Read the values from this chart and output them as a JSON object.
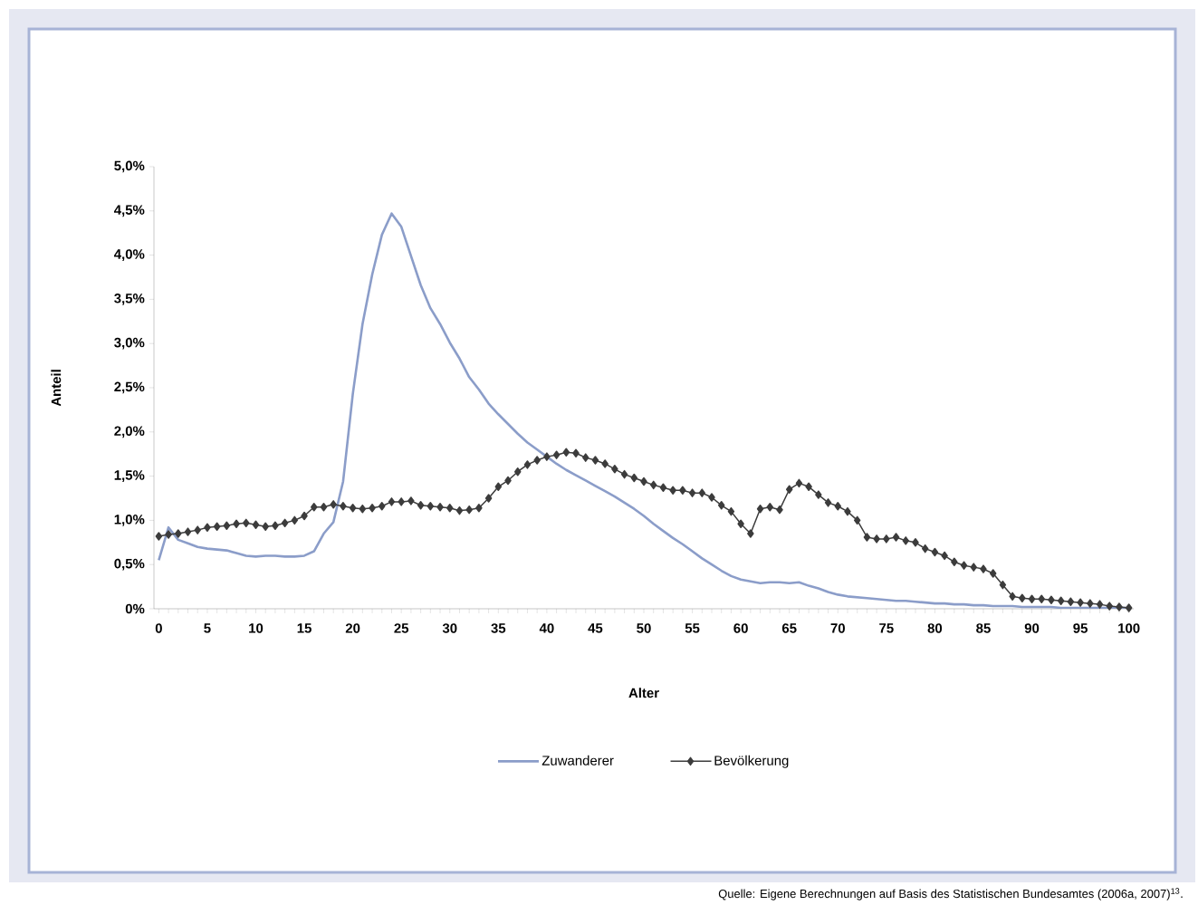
{
  "chart_data": {
    "type": "line",
    "xlabel": "Alter",
    "ylabel": "Anteil",
    "annotations": [
      "Quelle: Eigene Berechnungen auf Basis des Statistischen Bundesamtes (2006a, 2007)$^{13}$."
    ],
    "x": [
      0,
      1,
      2,
      3,
      4,
      5,
      6,
      7,
      8,
      9,
      10,
      11,
      12,
      13,
      14,
      15,
      16,
      17,
      18,
      19,
      20,
      21,
      22,
      23,
      24,
      25,
      26,
      27,
      28,
      29,
      30,
      31,
      32,
      33,
      34,
      35,
      36,
      37,
      38,
      39,
      40,
      41,
      42,
      43,
      44,
      45,
      46,
      47,
      48,
      49,
      50,
      51,
      52,
      53,
      54,
      55,
      56,
      57,
      58,
      59,
      60,
      61,
      62,
      63,
      64,
      65,
      66,
      67,
      68,
      69,
      70,
      71,
      72,
      73,
      74,
      75,
      76,
      77,
      78,
      79,
      80,
      81,
      82,
      83,
      84,
      85,
      86,
      87,
      88,
      89,
      90,
      91,
      92,
      93,
      94,
      95,
      96,
      97,
      98,
      99,
      100
    ],
    "series": [
      {
        "name": "Zuwanderer",
        "color": "#8b9dc9",
        "marker": "none",
        "values": [
          0.55,
          0.92,
          0.78,
          0.74,
          0.7,
          0.68,
          0.67,
          0.66,
          0.63,
          0.6,
          0.59,
          0.6,
          0.6,
          0.59,
          0.59,
          0.6,
          0.65,
          0.85,
          0.98,
          1.44,
          2.43,
          3.22,
          3.78,
          4.23,
          4.47,
          4.32,
          3.99,
          3.66,
          3.4,
          3.22,
          3.01,
          2.83,
          2.62,
          2.48,
          2.32,
          2.2,
          2.09,
          1.98,
          1.88,
          1.8,
          1.72,
          1.64,
          1.57,
          1.51,
          1.45,
          1.39,
          1.33,
          1.27,
          1.2,
          1.13,
          1.05,
          0.96,
          0.88,
          0.8,
          0.73,
          0.65,
          0.57,
          0.5,
          0.43,
          0.37,
          0.33,
          0.31,
          0.29,
          0.3,
          0.3,
          0.29,
          0.3,
          0.26,
          0.23,
          0.19,
          0.16,
          0.14,
          0.13,
          0.12,
          0.11,
          0.1,
          0.09,
          0.09,
          0.08,
          0.07,
          0.06,
          0.06,
          0.05,
          0.05,
          0.04,
          0.04,
          0.03,
          0.03,
          0.03,
          0.02,
          0.02,
          0.02,
          0.02,
          0.01,
          0.01,
          0.01,
          0.01,
          0.01,
          0.01,
          0.01,
          0.01
        ]
      },
      {
        "name": "Bevölkerung",
        "color": "#3c3c3c",
        "marker": "diamond",
        "values": [
          0.82,
          0.84,
          0.85,
          0.87,
          0.89,
          0.92,
          0.93,
          0.94,
          0.96,
          0.97,
          0.95,
          0.93,
          0.94,
          0.97,
          1.0,
          1.05,
          1.15,
          1.15,
          1.18,
          1.16,
          1.14,
          1.13,
          1.14,
          1.16,
          1.21,
          1.21,
          1.22,
          1.17,
          1.16,
          1.15,
          1.14,
          1.11,
          1.12,
          1.14,
          1.25,
          1.38,
          1.45,
          1.55,
          1.63,
          1.68,
          1.72,
          1.74,
          1.77,
          1.76,
          1.71,
          1.68,
          1.64,
          1.58,
          1.52,
          1.48,
          1.44,
          1.4,
          1.37,
          1.34,
          1.34,
          1.31,
          1.31,
          1.26,
          1.17,
          1.1,
          0.96,
          0.85,
          1.13,
          1.15,
          1.12,
          1.35,
          1.42,
          1.38,
          1.29,
          1.2,
          1.16,
          1.1,
          1.0,
          0.81,
          0.79,
          0.79,
          0.81,
          0.77,
          0.75,
          0.68,
          0.64,
          0.6,
          0.53,
          0.49,
          0.47,
          0.45,
          0.4,
          0.27,
          0.14,
          0.12,
          0.11,
          0.11,
          0.1,
          0.09,
          0.08,
          0.07,
          0.06,
          0.05,
          0.03,
          0.02,
          0.01
        ]
      }
    ],
    "xlim": [
      -0.5,
      100.5
    ],
    "xticks": [
      0,
      5,
      10,
      15,
      20,
      25,
      30,
      35,
      40,
      45,
      50,
      55,
      60,
      65,
      70,
      75,
      80,
      85,
      90,
      95,
      100
    ],
    "ylim": [
      0,
      5
    ],
    "yticks": [
      {
        "value": 0,
        "label": "0%"
      },
      {
        "value": 0.5,
        "label": "0,5%"
      },
      {
        "value": 1,
        "label": "1,0%"
      },
      {
        "value": 1.5,
        "label": "1,5%"
      },
      {
        "value": 2,
        "label": "2,0%"
      },
      {
        "value": 2.5,
        "label": "2,5%"
      },
      {
        "value": 3,
        "label": "3,0%"
      },
      {
        "value": 3.5,
        "label": "3,5%"
      },
      {
        "value": 4,
        "label": "4,0%"
      },
      {
        "value": 4.5,
        "label": "4,5%"
      },
      {
        "value": 5,
        "label": "5,0%"
      }
    ],
    "legend": "bottom"
  }
}
